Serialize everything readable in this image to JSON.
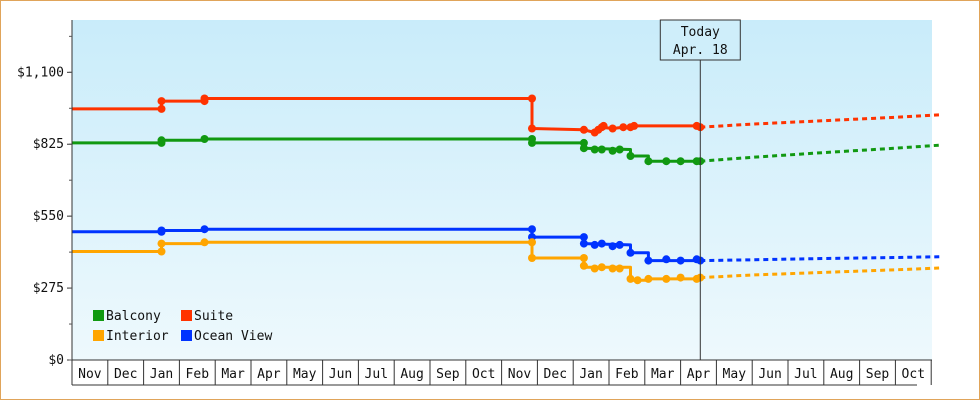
{
  "chart_data": {
    "type": "line",
    "title": "",
    "xlabel": "",
    "ylabel": "",
    "ylim": [
      0,
      1300
    ],
    "y_ticks": [
      {
        "value": 0,
        "label": "$0"
      },
      {
        "value": 275,
        "label": "$275"
      },
      {
        "value": 550,
        "label": "$550"
      },
      {
        "value": 825,
        "label": "$825"
      },
      {
        "value": 1100,
        "label": "$1,100"
      }
    ],
    "x_months": [
      "Nov",
      "Dec",
      "Jan",
      "Feb",
      "Mar",
      "Apr",
      "May",
      "Jun",
      "Jul",
      "Aug",
      "Sep",
      "Oct",
      "Nov",
      "Dec",
      "Jan",
      "Feb",
      "Mar",
      "Apr",
      "May",
      "Jun",
      "Jul",
      "Aug",
      "Sep",
      "Oct"
    ],
    "today": {
      "line1": "Today",
      "line2": "Apr. 18",
      "month_index": 17.55
    },
    "legend": [
      {
        "name": "Balcony",
        "color": "#119911"
      },
      {
        "name": "Suite",
        "color": "#ff3300"
      },
      {
        "name": "Interior",
        "color": "#ffa500"
      },
      {
        "name": "Ocean View",
        "color": "#0033ff"
      }
    ],
    "series": [
      {
        "name": "Suite",
        "color": "#ff3300",
        "points": [
          [
            0,
            960
          ],
          [
            2.5,
            960
          ],
          [
            2.5,
            990
          ],
          [
            3.7,
            990
          ],
          [
            3.7,
            1000
          ],
          [
            12.85,
            1000
          ],
          [
            12.85,
            885
          ],
          [
            14.3,
            880
          ],
          [
            14.6,
            870
          ],
          [
            14.7,
            880
          ],
          [
            14.8,
            890
          ],
          [
            15.1,
            885
          ],
          [
            15.4,
            890
          ],
          [
            15.6,
            890
          ],
          [
            15.7,
            895
          ],
          [
            17.55,
            895
          ]
        ],
        "markers": [
          [
            2.5,
            990
          ],
          [
            2.5,
            960
          ],
          [
            3.7,
            990
          ],
          [
            3.7,
            1000
          ],
          [
            12.85,
            1000
          ],
          [
            12.85,
            885
          ],
          [
            14.3,
            880
          ],
          [
            14.6,
            870
          ],
          [
            14.7,
            880
          ],
          [
            14.8,
            890
          ],
          [
            14.85,
            895
          ],
          [
            15.1,
            885
          ],
          [
            15.4,
            890
          ],
          [
            15.6,
            890
          ],
          [
            15.7,
            895
          ],
          [
            17.45,
            895
          ],
          [
            17.55,
            890
          ]
        ],
        "forecast": [
          [
            17.55,
            890
          ],
          [
            19,
            902
          ],
          [
            21,
            915
          ],
          [
            23,
            928
          ],
          [
            24.3,
            938
          ]
        ]
      },
      {
        "name": "Balcony",
        "color": "#119911",
        "points": [
          [
            0,
            830
          ],
          [
            2.5,
            830
          ],
          [
            2.5,
            840
          ],
          [
            3.7,
            840
          ],
          [
            3.7,
            845
          ],
          [
            12.85,
            845
          ],
          [
            12.85,
            830
          ],
          [
            14.3,
            830
          ],
          [
            14.3,
            810
          ],
          [
            15.6,
            805
          ],
          [
            15.6,
            780
          ],
          [
            16.1,
            780
          ],
          [
            16.1,
            760
          ],
          [
            17.55,
            760
          ]
        ],
        "markers": [
          [
            2.5,
            830
          ],
          [
            2.5,
            840
          ],
          [
            3.7,
            845
          ],
          [
            12.85,
            845
          ],
          [
            12.85,
            830
          ],
          [
            14.3,
            830
          ],
          [
            14.3,
            810
          ],
          [
            14.6,
            805
          ],
          [
            14.8,
            805
          ],
          [
            15.1,
            800
          ],
          [
            15.3,
            805
          ],
          [
            15.6,
            780
          ],
          [
            16.1,
            760
          ],
          [
            16.6,
            760
          ],
          [
            17.0,
            760
          ],
          [
            17.45,
            760
          ],
          [
            17.55,
            760
          ]
        ],
        "forecast": [
          [
            17.55,
            760
          ],
          [
            19,
            775
          ],
          [
            21,
            793
          ],
          [
            23,
            810
          ],
          [
            24.3,
            822
          ]
        ]
      },
      {
        "name": "Ocean View",
        "color": "#0033ff",
        "points": [
          [
            0,
            490
          ],
          [
            2.5,
            490
          ],
          [
            2.5,
            495
          ],
          [
            3.7,
            495
          ],
          [
            3.7,
            500
          ],
          [
            12.85,
            500
          ],
          [
            12.85,
            470
          ],
          [
            14.3,
            470
          ],
          [
            14.3,
            445
          ],
          [
            15.6,
            440
          ],
          [
            15.6,
            410
          ],
          [
            16.1,
            410
          ],
          [
            16.1,
            380
          ],
          [
            17.55,
            380
          ]
        ],
        "markers": [
          [
            2.5,
            490
          ],
          [
            2.5,
            495
          ],
          [
            3.7,
            500
          ],
          [
            12.85,
            500
          ],
          [
            12.85,
            470
          ],
          [
            14.3,
            470
          ],
          [
            14.3,
            445
          ],
          [
            14.6,
            440
          ],
          [
            14.8,
            445
          ],
          [
            15.1,
            435
          ],
          [
            15.3,
            440
          ],
          [
            15.6,
            410
          ],
          [
            16.1,
            380
          ],
          [
            16.6,
            385
          ],
          [
            17.0,
            380
          ],
          [
            17.45,
            385
          ],
          [
            17.55,
            380
          ]
        ],
        "forecast": [
          [
            17.55,
            380
          ],
          [
            19,
            383
          ],
          [
            21,
            388
          ],
          [
            23,
            392
          ],
          [
            24.3,
            395
          ]
        ]
      },
      {
        "name": "Interior",
        "color": "#ffa500",
        "points": [
          [
            0,
            415
          ],
          [
            2.5,
            415
          ],
          [
            2.5,
            445
          ],
          [
            3.7,
            445
          ],
          [
            3.7,
            450
          ],
          [
            12.85,
            450
          ],
          [
            12.85,
            390
          ],
          [
            14.3,
            390
          ],
          [
            14.3,
            355
          ],
          [
            15.6,
            355
          ],
          [
            15.6,
            305
          ],
          [
            16.1,
            305
          ],
          [
            16.1,
            310
          ],
          [
            17.55,
            310
          ]
        ],
        "markers": [
          [
            2.5,
            415
          ],
          [
            2.5,
            445
          ],
          [
            3.7,
            450
          ],
          [
            12.85,
            450
          ],
          [
            12.85,
            390
          ],
          [
            14.3,
            390
          ],
          [
            14.3,
            360
          ],
          [
            14.6,
            350
          ],
          [
            14.8,
            355
          ],
          [
            15.1,
            350
          ],
          [
            15.3,
            350
          ],
          [
            15.6,
            310
          ],
          [
            15.8,
            305
          ],
          [
            16.1,
            310
          ],
          [
            16.6,
            310
          ],
          [
            17.0,
            315
          ],
          [
            17.45,
            310
          ],
          [
            17.55,
            315
          ]
        ],
        "forecast": [
          [
            17.55,
            315
          ],
          [
            19,
            325
          ],
          [
            21,
            335
          ],
          [
            23,
            345
          ],
          [
            24.3,
            352
          ]
        ]
      }
    ]
  }
}
